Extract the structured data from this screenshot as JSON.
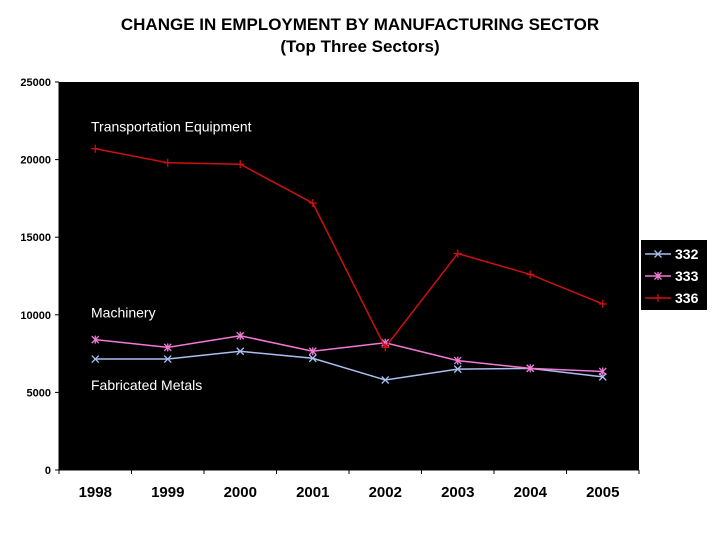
{
  "chart_data": {
    "type": "line",
    "title": "CHANGE IN EMPLOYMENT BY MANUFACTURING SECTOR",
    "subtitle": "(Top Three Sectors)",
    "xlabel": "",
    "ylabel": "",
    "categories": [
      "1998",
      "1999",
      "2000",
      "2001",
      "2002",
      "2003",
      "2004",
      "2005"
    ],
    "ylim": [
      0,
      25000
    ],
    "yticks": [
      "0",
      "5000",
      "10000",
      "15000",
      "20000",
      "25000"
    ],
    "grid": false,
    "legend_position": "right",
    "plot_background": "#000000",
    "series": [
      {
        "name": "332",
        "color": "#a8bff0",
        "marker": "x",
        "values": [
          7150,
          7150,
          7650,
          7200,
          5800,
          6500,
          6550,
          6000
        ]
      },
      {
        "name": "333",
        "color": "#f07ad6",
        "marker": "star",
        "values": [
          8400,
          7900,
          8650,
          7650,
          8200,
          7050,
          6550,
          6350
        ]
      },
      {
        "name": "336",
        "color": "#cc1111",
        "marker": "plus",
        "values": [
          20700,
          19800,
          19700,
          17200,
          7900,
          13950,
          12600,
          10700
        ]
      }
    ],
    "annotations": [
      {
        "text": "Transportation Equipment",
        "near_series": "336"
      },
      {
        "text": "Machinery",
        "near_series": "333"
      },
      {
        "text": "Fabricated Metals",
        "near_series": "332"
      }
    ]
  }
}
